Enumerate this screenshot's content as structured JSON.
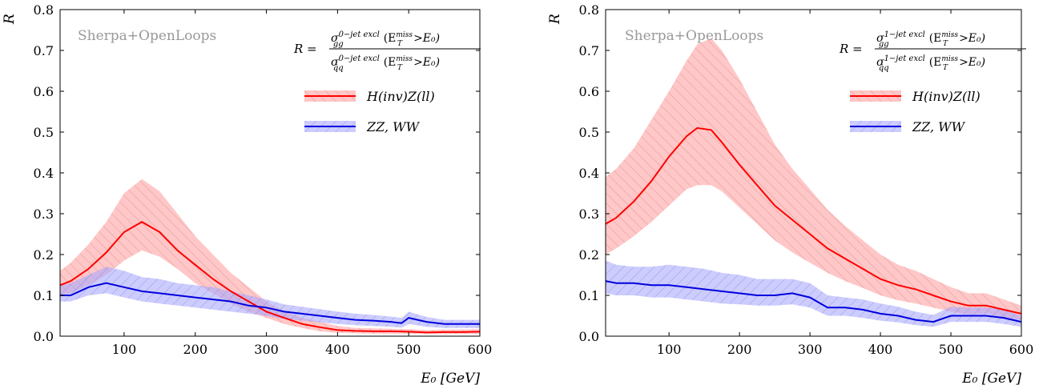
{
  "chart_data": [
    {
      "type": "line",
      "id": "left",
      "watermark": "Sherpa+OpenLoops",
      "ylabel": "R",
      "xlabel": "E₀ [GeV]",
      "formula": {
        "lhs": "R =",
        "num_sigma": "σ",
        "num_sub": "gg",
        "num_sup": "0−jet excl",
        "num_arg": "(E",
        "num_arg_sup": "miss",
        "num_arg_sub": "T",
        "num_arg_tail": ">E₀)",
        "den_sigma": "σ",
        "den_sub": "q̄q",
        "den_sup": "0−jet excl",
        "den_arg": "(E",
        "den_arg_sup": "miss",
        "den_arg_sub": "T",
        "den_arg_tail": ">E₀)"
      },
      "xlim": [
        10,
        600
      ],
      "ylim": [
        0,
        0.8
      ],
      "xticks": [
        100,
        200,
        300,
        400,
        500,
        600
      ],
      "yticks": [
        0.0,
        0.1,
        0.2,
        0.3,
        0.4,
        0.5,
        0.6,
        0.7,
        0.8
      ],
      "legend_position": "top-right",
      "series": [
        {
          "name": "H(inv)Z(ll)",
          "color": "#ff0000",
          "band_color": "#ff9999",
          "hatch": "/",
          "x": [
            10,
            25,
            50,
            75,
            100,
            125,
            150,
            175,
            200,
            225,
            250,
            275,
            300,
            325,
            350,
            375,
            400,
            425,
            450,
            475,
            500,
            525,
            550,
            575,
            600
          ],
          "y": [
            0.125,
            0.135,
            0.165,
            0.205,
            0.255,
            0.28,
            0.255,
            0.21,
            0.175,
            0.14,
            0.11,
            0.085,
            0.06,
            0.045,
            0.03,
            0.022,
            0.015,
            0.013,
            0.012,
            0.012,
            0.011,
            0.009,
            0.01,
            0.01,
            0.011
          ],
          "ylow": [
            0.1,
            0.105,
            0.125,
            0.15,
            0.185,
            0.21,
            0.195,
            0.165,
            0.13,
            0.105,
            0.08,
            0.06,
            0.045,
            0.03,
            0.02,
            0.012,
            0.008,
            0.007,
            0.006,
            0.006,
            0.006,
            0.005,
            0.005,
            0.005,
            0.005
          ],
          "yhigh": [
            0.16,
            0.18,
            0.225,
            0.28,
            0.35,
            0.385,
            0.355,
            0.3,
            0.245,
            0.2,
            0.155,
            0.12,
            0.085,
            0.06,
            0.045,
            0.035,
            0.025,
            0.02,
            0.019,
            0.018,
            0.017,
            0.015,
            0.016,
            0.016,
            0.017
          ]
        },
        {
          "name": "ZZ, WW",
          "color": "#0000dd",
          "band_color": "#aaaaff",
          "hatch": "\\",
          "x": [
            10,
            25,
            50,
            75,
            100,
            125,
            150,
            175,
            200,
            225,
            250,
            275,
            300,
            325,
            350,
            375,
            400,
            425,
            450,
            475,
            490,
            500,
            525,
            550,
            575,
            600
          ],
          "y": [
            0.1,
            0.1,
            0.12,
            0.13,
            0.12,
            0.11,
            0.105,
            0.1,
            0.095,
            0.09,
            0.085,
            0.075,
            0.07,
            0.06,
            0.055,
            0.05,
            0.045,
            0.04,
            0.038,
            0.035,
            0.032,
            0.045,
            0.035,
            0.03,
            0.03,
            0.03
          ],
          "ylow": [
            0.085,
            0.085,
            0.1,
            0.105,
            0.095,
            0.085,
            0.08,
            0.075,
            0.07,
            0.065,
            0.06,
            0.055,
            0.05,
            0.042,
            0.038,
            0.034,
            0.03,
            0.027,
            0.025,
            0.023,
            0.021,
            0.03,
            0.023,
            0.02,
            0.02,
            0.02
          ],
          "yhigh": [
            0.125,
            0.13,
            0.15,
            0.17,
            0.16,
            0.145,
            0.14,
            0.13,
            0.125,
            0.12,
            0.11,
            0.1,
            0.09,
            0.078,
            0.072,
            0.066,
            0.06,
            0.055,
            0.052,
            0.048,
            0.045,
            0.06,
            0.047,
            0.04,
            0.04,
            0.04
          ]
        }
      ]
    },
    {
      "type": "line",
      "id": "right",
      "watermark": "Sherpa+OpenLoops",
      "ylabel": "R",
      "xlabel": "E₀ [GeV]",
      "formula": {
        "lhs": "R =",
        "num_sigma": "σ",
        "num_sub": "gg",
        "num_sup": "1−jet excl",
        "num_arg": "(E",
        "num_arg_sup": "miss",
        "num_arg_sub": "T",
        "num_arg_tail": ">E₀)",
        "den_sigma": "σ",
        "den_sub": "q̄q",
        "den_sup": "1−jet excl",
        "den_arg": "(E",
        "den_arg_sup": "miss",
        "den_arg_sub": "T",
        "den_arg_tail": ">E₀)"
      },
      "xlim": [
        10,
        600
      ],
      "ylim": [
        0,
        0.8
      ],
      "xticks": [
        100,
        200,
        300,
        400,
        500,
        600
      ],
      "yticks": [
        0.0,
        0.1,
        0.2,
        0.3,
        0.4,
        0.5,
        0.6,
        0.7,
        0.8
      ],
      "legend_position": "top-right",
      "series": [
        {
          "name": "H(inv)Z(ll)",
          "color": "#ff0000",
          "band_color": "#ff9999",
          "hatch": "/",
          "x": [
            10,
            25,
            50,
            75,
            100,
            125,
            140,
            160,
            175,
            200,
            225,
            250,
            275,
            300,
            325,
            350,
            375,
            400,
            425,
            450,
            475,
            500,
            525,
            550,
            575,
            600
          ],
          "y": [
            0.275,
            0.29,
            0.33,
            0.38,
            0.44,
            0.49,
            0.51,
            0.505,
            0.475,
            0.42,
            0.37,
            0.32,
            0.285,
            0.25,
            0.215,
            0.19,
            0.165,
            0.14,
            0.125,
            0.115,
            0.1,
            0.085,
            0.075,
            0.075,
            0.065,
            0.055
          ],
          "ylow": [
            0.2,
            0.215,
            0.245,
            0.28,
            0.32,
            0.36,
            0.37,
            0.37,
            0.355,
            0.315,
            0.275,
            0.235,
            0.205,
            0.18,
            0.155,
            0.135,
            0.118,
            0.1,
            0.088,
            0.08,
            0.07,
            0.06,
            0.053,
            0.055,
            0.047,
            0.04
          ],
          "yhigh": [
            0.39,
            0.41,
            0.46,
            0.53,
            0.6,
            0.675,
            0.715,
            0.73,
            0.7,
            0.63,
            0.55,
            0.47,
            0.41,
            0.36,
            0.31,
            0.27,
            0.235,
            0.2,
            0.175,
            0.16,
            0.14,
            0.12,
            0.105,
            0.105,
            0.09,
            0.075
          ]
        },
        {
          "name": "ZZ, WW",
          "color": "#0000dd",
          "band_color": "#aaaaff",
          "hatch": "\\",
          "x": [
            10,
            25,
            50,
            75,
            100,
            125,
            150,
            175,
            200,
            225,
            250,
            275,
            300,
            325,
            350,
            375,
            400,
            425,
            450,
            475,
            500,
            525,
            550,
            575,
            600
          ],
          "y": [
            0.135,
            0.13,
            0.13,
            0.125,
            0.125,
            0.12,
            0.115,
            0.11,
            0.105,
            0.1,
            0.1,
            0.105,
            0.095,
            0.07,
            0.07,
            0.065,
            0.055,
            0.05,
            0.04,
            0.035,
            0.05,
            0.05,
            0.05,
            0.045,
            0.035
          ],
          "ylow": [
            0.105,
            0.1,
            0.1,
            0.095,
            0.095,
            0.09,
            0.085,
            0.08,
            0.078,
            0.075,
            0.075,
            0.078,
            0.07,
            0.05,
            0.05,
            0.045,
            0.038,
            0.034,
            0.027,
            0.023,
            0.035,
            0.035,
            0.035,
            0.03,
            0.023
          ],
          "yhigh": [
            0.185,
            0.175,
            0.17,
            0.17,
            0.175,
            0.17,
            0.165,
            0.155,
            0.15,
            0.14,
            0.14,
            0.14,
            0.13,
            0.1,
            0.095,
            0.09,
            0.08,
            0.072,
            0.06,
            0.052,
            0.072,
            0.07,
            0.07,
            0.065,
            0.05
          ]
        }
      ]
    }
  ]
}
